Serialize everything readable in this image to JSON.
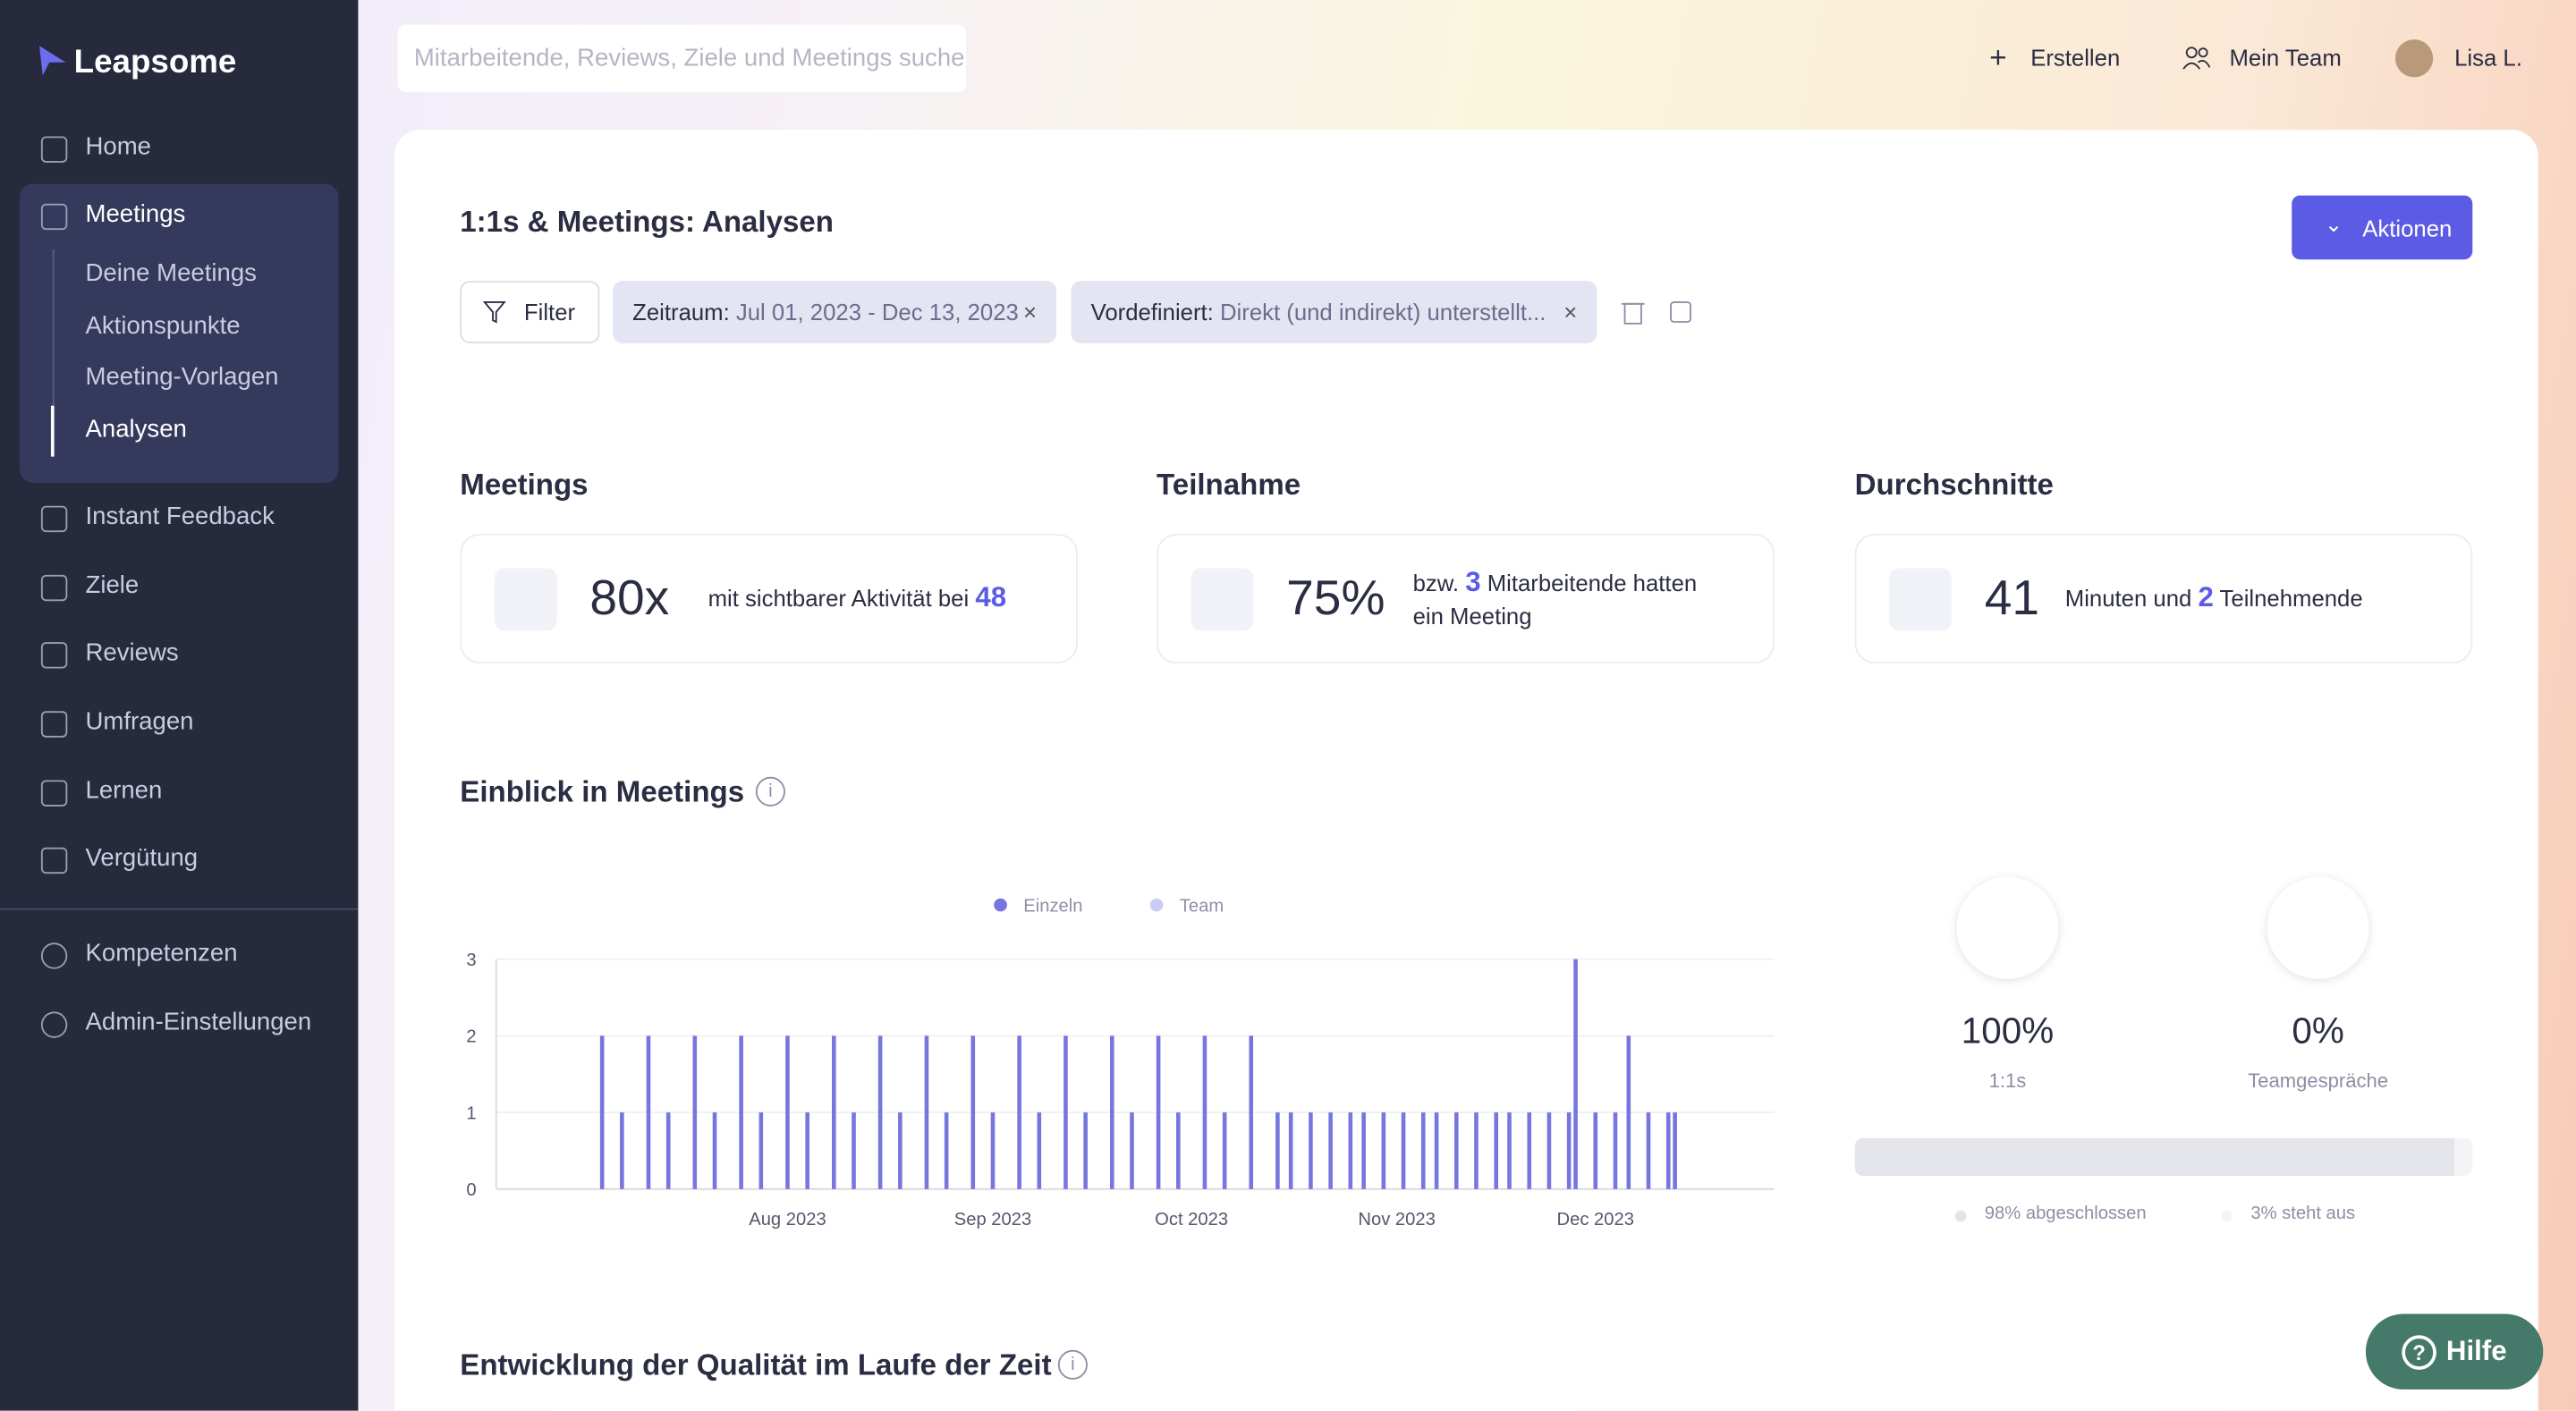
{
  "sidebar": {
    "logo": "Leapsome",
    "items": [
      {
        "label": "Home"
      },
      {
        "label": "Meetings",
        "children": [
          "Deine Meetings",
          "Aktionspunkte",
          "Meeting-Vorlagen",
          "Analysen"
        ]
      },
      {
        "label": "Instant Feedback"
      },
      {
        "label": "Ziele"
      },
      {
        "label": "Reviews"
      },
      {
        "label": "Umfragen"
      },
      {
        "label": "Lernen"
      },
      {
        "label": "Vergütung"
      }
    ],
    "bottom_items": [
      "Kompetenzen",
      "Admin-Einstellungen"
    ]
  },
  "header": {
    "search_placeholder": "Mitarbeitende, Reviews, Ziele und Meetings suchen",
    "create": "Erstellen",
    "team": "Mein Team",
    "user": "Lisa L."
  },
  "page": {
    "title": "1:1s & Meetings: Analysen",
    "actions": "Aktionen",
    "filter": "Filter",
    "chips": [
      {
        "key": "Zeitraum:",
        "value": "Jul 01, 2023 - Dec 13, 2023"
      },
      {
        "key": "Vordefiniert:",
        "value": "Direkt (und indirekt) unterstellt..."
      }
    ],
    "stats": [
      {
        "heading": "Meetings",
        "number": "80x",
        "text": "mit sichtbarer Aktivität bei",
        "highlight": "48"
      },
      {
        "heading": "Teilnahme",
        "number": "75%",
        "pre": "bzw.",
        "highlight": "3",
        "text": "Mitarbeitende hatten ein Meeting"
      },
      {
        "heading": "Durchschnitte",
        "number": "41",
        "text": "Minuten und",
        "highlight": "2",
        "post": "Teilnehmende"
      }
    ],
    "insight_heading": "Einblick in Meetings",
    "quality_heading": "Entwicklung der Qualität im Laufe der Zeit",
    "help": "Hilfe",
    "split": [
      {
        "value": "100%",
        "label": "1:1s"
      },
      {
        "value": "0%",
        "label": "Teamgespräche"
      }
    ],
    "progress": [
      {
        "value": 98,
        "label": "98% abgeschlossen",
        "color": "#e4e5ea"
      },
      {
        "value": 3,
        "label": "3% steht aus",
        "color": "#f4f4f6"
      }
    ]
  },
  "chart_data": {
    "type": "bar",
    "x": [
      3,
      6,
      10,
      13,
      17,
      20,
      24,
      27,
      31,
      34,
      38,
      41,
      45,
      48,
      52,
      55,
      59,
      62,
      66,
      69,
      73,
      76,
      80,
      83,
      87,
      90,
      94,
      97,
      101,
      105,
      107,
      110,
      113,
      116,
      118,
      121,
      124,
      127,
      129,
      132,
      135,
      138,
      140,
      143,
      146,
      149,
      150,
      153,
      156,
      158,
      161,
      164,
      165
    ],
    "series": [
      {
        "name": "Einzeln",
        "color": "#7676e0",
        "values": [
          2,
          1,
          2,
          1,
          2,
          1,
          2,
          1,
          2,
          1,
          2,
          1,
          2,
          1,
          2,
          1,
          2,
          1,
          2,
          1,
          2,
          1,
          2,
          1,
          2,
          1,
          2,
          1,
          2,
          1,
          1,
          1,
          1,
          1,
          1,
          1,
          1,
          1,
          1,
          1,
          1,
          1,
          1,
          1,
          1,
          1,
          3,
          1,
          1,
          2,
          1,
          1,
          1
        ]
      },
      {
        "name": "Team",
        "color": "#c9cdf5",
        "values": [
          0,
          0,
          0,
          0,
          0,
          0,
          0,
          0,
          0,
          0,
          0,
          0,
          0,
          0,
          0,
          0,
          0,
          0,
          0,
          0,
          0,
          0,
          0,
          0,
          0,
          0,
          0,
          0,
          0,
          0,
          0,
          0,
          0,
          0,
          0,
          0,
          0,
          0,
          0,
          0,
          0,
          0,
          0,
          0,
          0,
          0,
          0,
          0,
          0,
          0,
          0,
          0,
          0
        ]
      }
    ],
    "xlim": [
      -13,
      180
    ],
    "xticks": [
      {
        "value": 31,
        "label": "Aug 2023"
      },
      {
        "value": 62,
        "label": "Sep 2023"
      },
      {
        "value": 92,
        "label": "Oct 2023"
      },
      {
        "value": 123,
        "label": "Nov 2023"
      },
      {
        "value": 153,
        "label": "Dec 2023"
      }
    ],
    "ylim": [
      0,
      3
    ],
    "yticks": [
      0,
      1,
      2,
      3
    ],
    "grid": true
  }
}
